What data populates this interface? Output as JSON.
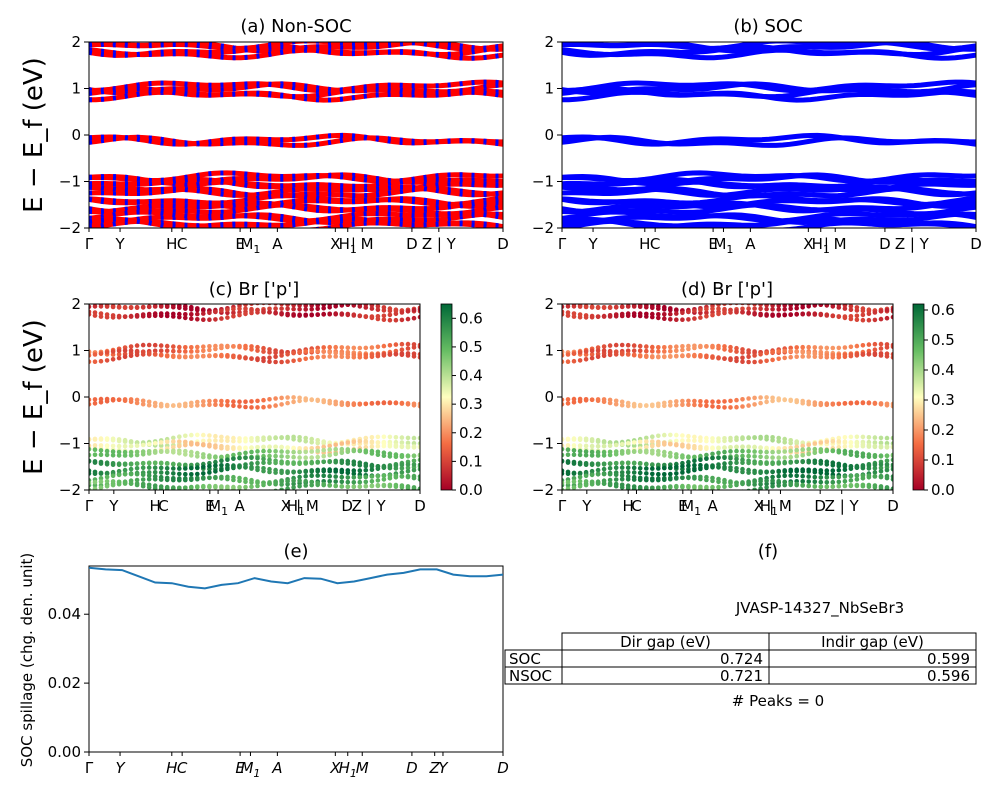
{
  "panel_titles": {
    "a": "(a) Non-SOC",
    "b": "(b) SOC",
    "c": "(c)  Br ['p']",
    "d": "(d) Br ['p']",
    "e": "(e)",
    "f": "(f)"
  },
  "band_ylabel": "E − E_f (eV)",
  "spillage_ylabel": "SOC spillage (chg. den. unit)",
  "kpath_labels": [
    "Γ",
    "Y",
    "H",
    "C",
    "E",
    "M1",
    "A",
    "X",
    "H1",
    "| M",
    "D",
    "Z | Y",
    "D"
  ],
  "kpath_labels_e": [
    "Γ",
    "Y",
    "H",
    "C",
    "E",
    "M1",
    "A",
    "X",
    "H1",
    "M",
    "D",
    "Z",
    "Y",
    "D"
  ],
  "energy_ticks": [
    "2",
    "1",
    "0",
    "−1",
    "−2"
  ],
  "colorbar_c_ticks": [
    "0.6",
    "0.5",
    "0.4",
    "0.3",
    "0.2",
    "0.1",
    "0.0"
  ],
  "colorbar_d_ticks": [
    "0.6",
    "0.5",
    "0.4",
    "0.3",
    "0.2",
    "0.1",
    "0.0"
  ],
  "info": {
    "material": "JVASP-14327_NbSeBr3",
    "table_headers": [
      "",
      "Dir gap (eV)",
      "Indir gap (eV)"
    ],
    "rows": [
      {
        "label": "SOC",
        "dir": "0.724",
        "indir": "0.599"
      },
      {
        "label": "NSOC",
        "dir": "0.721",
        "indir": "0.596"
      }
    ],
    "peaks": "# Peaks = 0"
  },
  "colors": {
    "nonsoc_band": "#ff0000",
    "nonsoc_accent": "#0000ff",
    "soc_band": "#0000ff",
    "spillage_line": "#1f77b4"
  },
  "chart_data": [
    {
      "panel": "a",
      "type": "line",
      "title": "(a) Non-SOC",
      "ylabel": "E − E_f (eV)",
      "ylim": [
        -2,
        2
      ],
      "bands_eV": [
        1.9,
        1.75,
        1.0,
        0.85,
        -0.15,
        -0.95,
        -1.1,
        -1.25,
        -1.45,
        -1.6,
        -1.8,
        -1.95
      ]
    },
    {
      "panel": "b",
      "type": "line",
      "title": "(b) SOC",
      "ylabel": "",
      "ylim": [
        -2,
        2
      ],
      "bands_eV": [
        1.9,
        1.75,
        1.0,
        0.85,
        -0.15,
        -0.95,
        -1.1,
        -1.25,
        -1.45,
        -1.6,
        -1.8,
        -1.95
      ]
    },
    {
      "panel": "c",
      "type": "scatter",
      "title": "(c)  Br ['p']",
      "ylabel": "E − E_f (eV)",
      "ylim": [
        -2,
        2
      ],
      "colorbar_range": [
        0.0,
        0.65
      ],
      "band_weights": [
        0.05,
        0.05,
        0.15,
        0.15,
        0.2,
        0.35,
        0.3,
        0.45,
        0.55,
        0.6,
        0.55,
        0.5
      ]
    },
    {
      "panel": "d",
      "type": "scatter",
      "title": "(d) Br ['p']",
      "ylabel": "",
      "ylim": [
        -2,
        2
      ],
      "colorbar_range": [
        0.0,
        0.62
      ],
      "band_weights": [
        0.05,
        0.05,
        0.15,
        0.15,
        0.2,
        0.35,
        0.3,
        0.45,
        0.55,
        0.6,
        0.55,
        0.5
      ]
    },
    {
      "panel": "e",
      "type": "line",
      "title": "(e)",
      "ylabel": "SOC spillage (chg. den. unit)",
      "ylim": [
        0,
        0.054
      ],
      "yticks": [
        "0.00",
        "0.02",
        "0.04"
      ],
      "x": [
        0,
        0.04,
        0.08,
        0.12,
        0.16,
        0.2,
        0.24,
        0.28,
        0.32,
        0.36,
        0.4,
        0.44,
        0.48,
        0.52,
        0.56,
        0.6,
        0.64,
        0.68,
        0.72,
        0.76,
        0.8,
        0.84,
        0.88,
        0.92,
        0.96,
        1.0
      ],
      "y": [
        0.0535,
        0.053,
        0.0528,
        0.051,
        0.0492,
        0.049,
        0.048,
        0.0475,
        0.0485,
        0.049,
        0.0505,
        0.0495,
        0.049,
        0.0505,
        0.0503,
        0.049,
        0.0495,
        0.0505,
        0.0515,
        0.052,
        0.053,
        0.053,
        0.0515,
        0.051,
        0.051,
        0.0515
      ]
    }
  ]
}
